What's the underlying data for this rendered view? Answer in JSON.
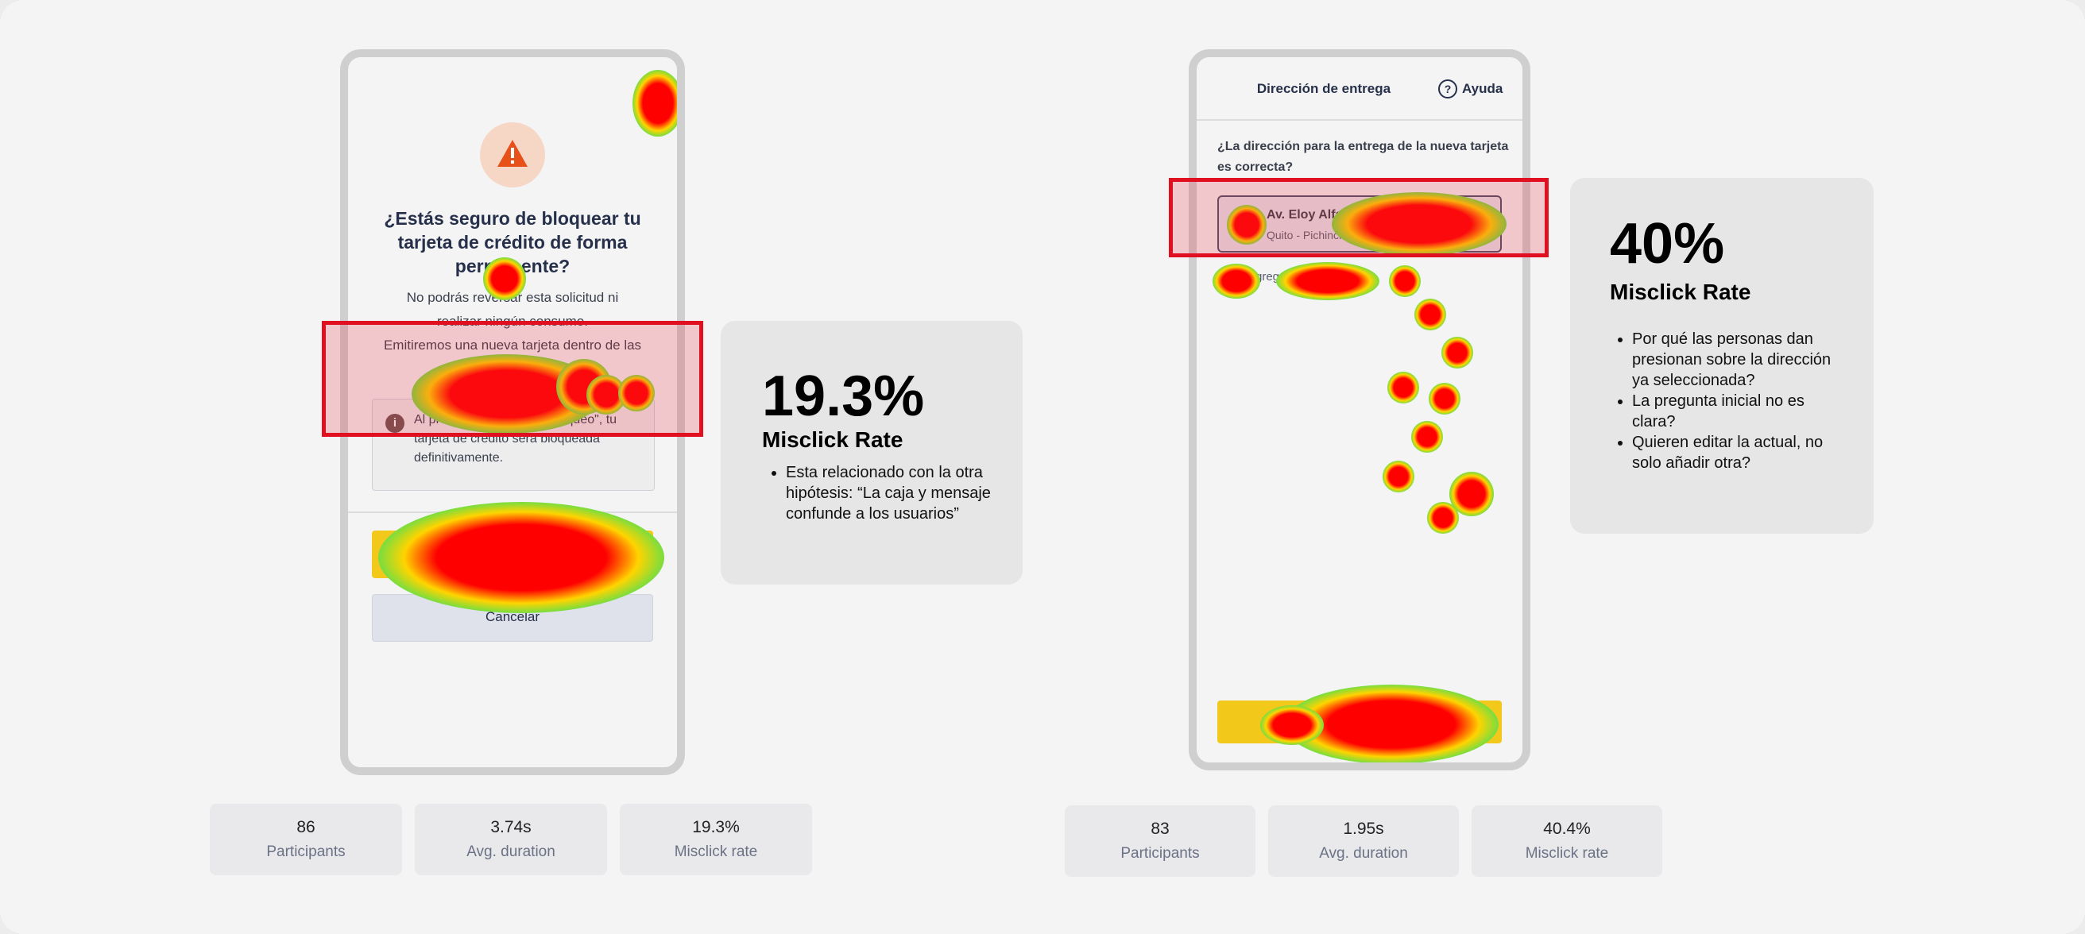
{
  "left_screen": {
    "title": "¿Estás seguro de bloquear tu tarjeta de crédito de forma permanente?",
    "body_line1": "No podrás reversar esta solicitud ni realizar ningún consumo.",
    "body_line2": "Emitiremos una nueva tarjeta dentro de las próximas 48 horas.",
    "info_text": "Al presionar \"Confirmar bloqueo\", tu tarjeta de crédito será bloqueada definitivamente.",
    "cancel_label": "Cancelar",
    "warning_icon": "warning-triangle-icon",
    "info_icon": "info-icon"
  },
  "left_metric": {
    "value": "19.3%",
    "label": "Misclick Rate",
    "notes": [
      "Esta relacionado con la otra hipótesis: “La caja y mensaje confunde a los usuarios”"
    ]
  },
  "left_stats": [
    {
      "value": "86",
      "label": "Participants"
    },
    {
      "value": "3.74s",
      "label": "Avg. duration"
    },
    {
      "value": "19.3%",
      "label": "Misclick rate"
    }
  ],
  "right_screen": {
    "header_title": "Dirección de entrega",
    "help_label": "Ayuda",
    "help_icon": "question-circle-icon",
    "question": "¿La dirección para la entrega de la nueva tarjeta es correcta?",
    "address_line1": "Av. Eloy Alfaro",
    "address_line2": "Quito - Pichincha",
    "add_label": "Agregar otra dirección",
    "confirm_label": "Confirmar"
  },
  "right_metric": {
    "value": "40%",
    "label": "Misclick Rate",
    "notes": [
      "Por qué las personas dan presionan sobre la dirección ya seleccionada?",
      "La pregunta inicial no es clara?",
      "Quieren editar la actual, no solo añadir otra?"
    ]
  },
  "right_stats": [
    {
      "value": "83",
      "label": "Participants"
    },
    {
      "value": "1.95s",
      "label": "Avg. duration"
    },
    {
      "value": "40.4%",
      "label": "Misclick rate"
    }
  ],
  "colors": {
    "warning": "#e8501a",
    "warning_bg": "#f6d7c6",
    "confirm_yellow": "#f2c81a",
    "highlight_red": "#e01020",
    "heat_red": "#ff0000"
  }
}
